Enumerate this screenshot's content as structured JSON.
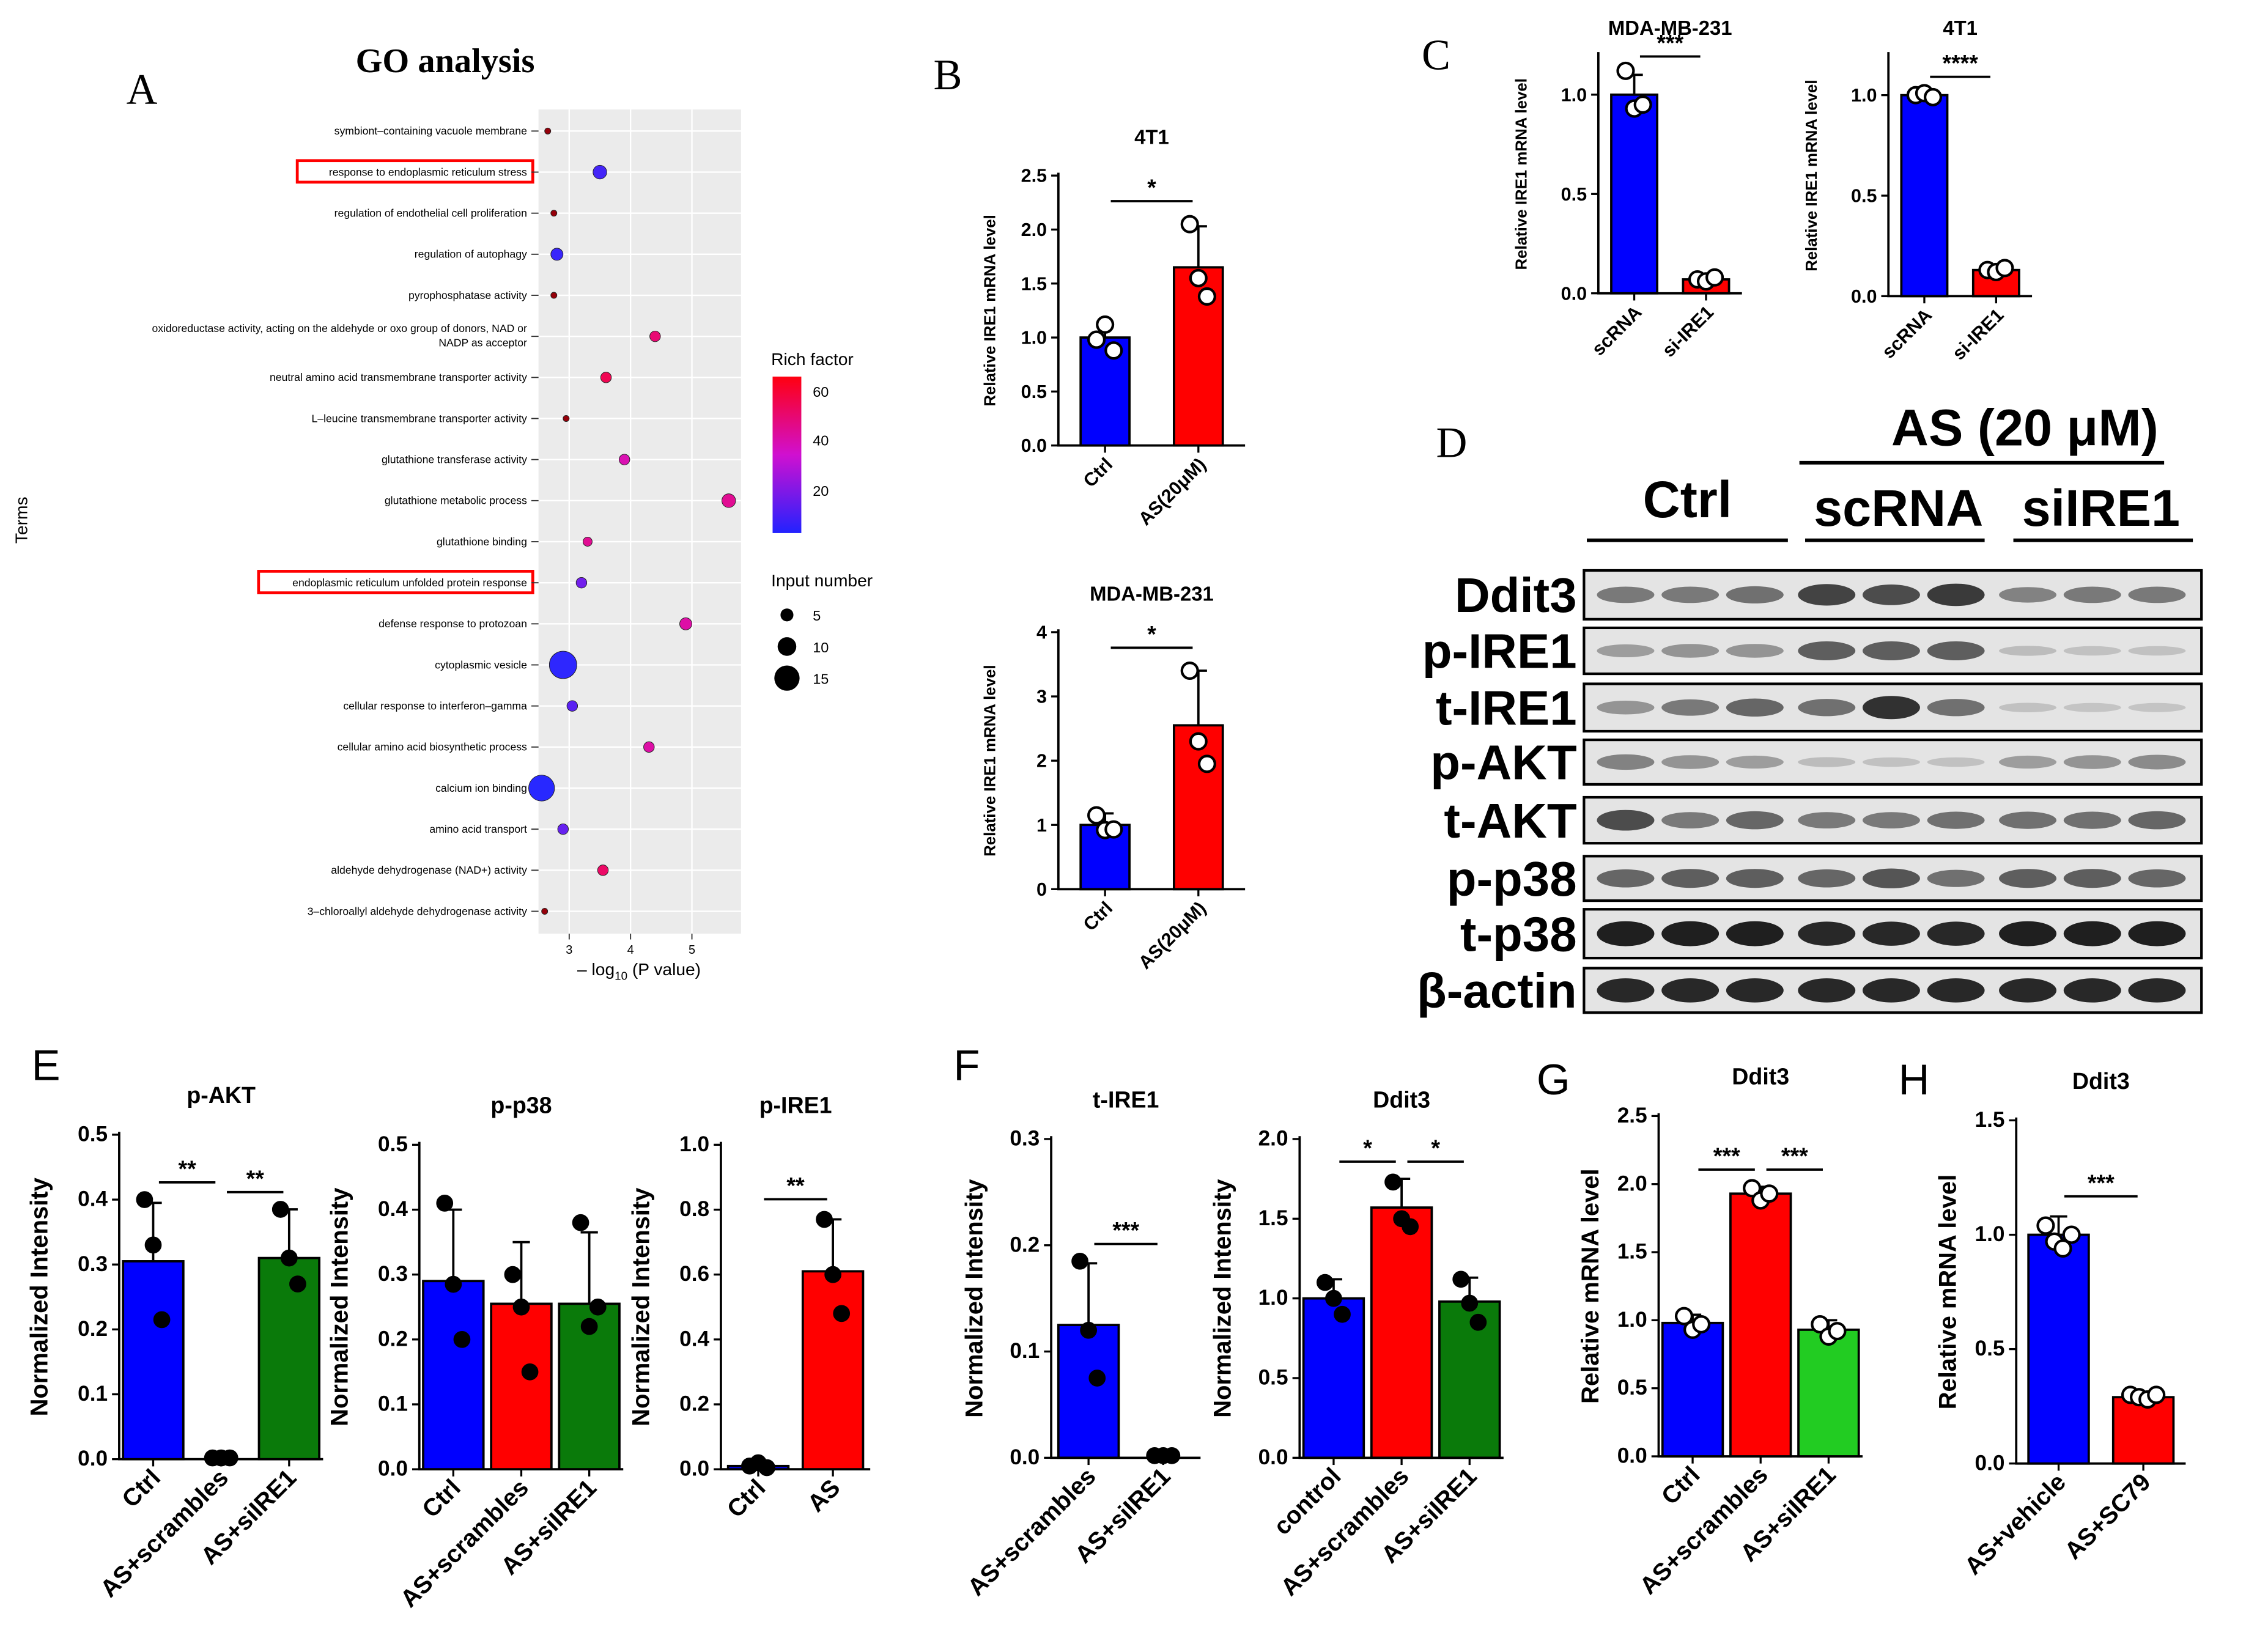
{
  "panels": {
    "A": "A",
    "B": "B",
    "C": "C",
    "D": "D",
    "E": "E",
    "F": "F",
    "G": "G",
    "H": "H"
  },
  "colors": {
    "blue": "#0000ff",
    "red": "#ff0000",
    "green": "#0a7a0a",
    "lightgreen": "#22cc22",
    "highlight": "#ff0000",
    "gobg": "#ebebeb"
  },
  "panel_a": {
    "title": "GO analysis",
    "y_axis_label": "Terms",
    "x_axis_label_pre": "– log",
    "x_axis_label_sub": "10",
    "x_axis_label_post": " (P value)",
    "x_ticks": [
      "3",
      "4",
      "5"
    ],
    "legend_rich_title": "Rich factor",
    "legend_rich_ticks": [
      "60",
      "40",
      "20"
    ],
    "legend_input_title": "Input number",
    "legend_input_ticks": [
      "5",
      "10",
      "15"
    ]
  },
  "panel_d": {
    "group_title": "AS (20 μM)",
    "groups": [
      "Ctrl",
      "scRNA",
      "siIRE1"
    ],
    "bands": [
      "Ddit3",
      "p-IRE1",
      "t-IRE1",
      "p-AKT",
      "t-AKT",
      "p-p38",
      "t-p38",
      "β-actin"
    ]
  },
  "chart_data": [
    {
      "id": "A",
      "type": "scatter",
      "title": "GO analysis",
      "xlabel": "– log10 (P value)",
      "ylabel": "Terms",
      "xlim": [
        2.5,
        5.8
      ],
      "terms": [
        {
          "label": "symbiont–containing vacuole membrane",
          "x": 2.65,
          "rich": 60,
          "n": 1,
          "highlight": false
        },
        {
          "label": "response to endoplasmic reticulum stress",
          "x": 3.5,
          "rich": 10,
          "n": 6,
          "highlight": true
        },
        {
          "label": "regulation of endothelial cell proliferation",
          "x": 2.75,
          "rich": 60,
          "n": 1,
          "highlight": false
        },
        {
          "label": "regulation of autophagy",
          "x": 2.8,
          "rich": 8,
          "n": 5,
          "highlight": false
        },
        {
          "label": "pyrophosphatase activity",
          "x": 2.75,
          "rich": 60,
          "n": 1,
          "highlight": false
        },
        {
          "label": "oxidoreductase activity, acting on the aldehyde or oxo group of donors, NAD or NADP as acceptor",
          "x": 4.4,
          "rich": 50,
          "n": 4,
          "highlight": false
        },
        {
          "label": "neutral amino acid transmembrane transporter activity",
          "x": 3.6,
          "rich": 55,
          "n": 4,
          "highlight": false
        },
        {
          "label": "L–leucine transmembrane transporter activity",
          "x": 2.95,
          "rich": 65,
          "n": 1,
          "highlight": false
        },
        {
          "label": "glutathione transferase activity",
          "x": 3.9,
          "rich": 40,
          "n": 4,
          "highlight": false
        },
        {
          "label": "glutathione metabolic process",
          "x": 5.6,
          "rich": 45,
          "n": 6,
          "highlight": false
        },
        {
          "label": "glutathione binding",
          "x": 3.3,
          "rich": 45,
          "n": 3,
          "highlight": false
        },
        {
          "label": "endoplasmic reticulum unfolded protein response",
          "x": 3.2,
          "rich": 18,
          "n": 4,
          "highlight": true
        },
        {
          "label": "defense response to protozoan",
          "x": 4.9,
          "rich": 42,
          "n": 5,
          "highlight": false
        },
        {
          "label": "cytoplasmic vesicle",
          "x": 2.9,
          "rich": 6,
          "n": 15,
          "highlight": false
        },
        {
          "label": "cellular response to interferon–gamma",
          "x": 3.05,
          "rich": 14,
          "n": 4,
          "highlight": false
        },
        {
          "label": "cellular amino acid biosynthetic process",
          "x": 4.3,
          "rich": 42,
          "n": 4,
          "highlight": false
        },
        {
          "label": "calcium ion binding",
          "x": 2.55,
          "rich": 5,
          "n": 14,
          "highlight": false
        },
        {
          "label": "amino acid transport",
          "x": 2.9,
          "rich": 16,
          "n": 4,
          "highlight": false
        },
        {
          "label": "aldehyde dehydrogenase (NAD+) activity",
          "x": 3.55,
          "rich": 52,
          "n": 4,
          "highlight": false
        },
        {
          "label": "3–chloroallyl aldehyde dehydrogenase activity",
          "x": 2.6,
          "rich": 62,
          "n": 1,
          "highlight": false
        }
      ]
    },
    {
      "id": "B1",
      "type": "bar",
      "title": "4T1",
      "ylabel": "Relative IRE1 mRNA level",
      "ylim": [
        0,
        2.5
      ],
      "yticks": [
        "0.0",
        "0.5",
        "1.0",
        "1.5",
        "2.0",
        "2.5"
      ],
      "categories": [
        "Ctrl",
        "AS(20μM)"
      ],
      "values": [
        1.0,
        1.65
      ],
      "errors": [
        0.12,
        0.38
      ],
      "points": [
        [
          0.98,
          1.12,
          0.88
        ],
        [
          2.05,
          1.55,
          1.38
        ]
      ],
      "colors": [
        "blue",
        "red"
      ],
      "sig": [
        {
          "from": 0,
          "to": 1,
          "label": "*"
        }
      ]
    },
    {
      "id": "B2",
      "type": "bar",
      "title": "MDA-MB-231",
      "ylabel": "Relative IRE1 mRNA level",
      "ylim": [
        0,
        4
      ],
      "yticks": [
        "0",
        "1",
        "2",
        "3",
        "4"
      ],
      "categories": [
        "Ctrl",
        "AS(20μM)"
      ],
      "values": [
        1.0,
        2.55
      ],
      "errors": [
        0.18,
        0.85
      ],
      "points": [
        [
          1.15,
          0.92,
          0.93
        ],
        [
          3.4,
          2.3,
          1.95
        ]
      ],
      "colors": [
        "blue",
        "red"
      ],
      "sig": [
        {
          "from": 0,
          "to": 1,
          "label": "*"
        }
      ]
    },
    {
      "id": "C1",
      "type": "bar",
      "title": "MDA-MB-231",
      "ylabel": "Relative IRE1 mRNA level",
      "ylim": [
        0,
        1.2
      ],
      "yticks": [
        "0.0",
        "0.5",
        "1.0"
      ],
      "categories": [
        "scRNA",
        "si-IRE1"
      ],
      "values": [
        1.0,
        0.07
      ],
      "errors": [
        0.1,
        0.015
      ],
      "points": [
        [
          1.12,
          0.93,
          0.95
        ],
        [
          0.07,
          0.06,
          0.08
        ]
      ],
      "colors": [
        "blue",
        "red"
      ],
      "sig": [
        {
          "from": 0,
          "to": 1,
          "label": "***"
        }
      ]
    },
    {
      "id": "C2",
      "type": "bar",
      "title": "4T1",
      "ylabel": "Relative IRE1 mRNA level",
      "ylim": [
        0,
        1.2
      ],
      "yticks": [
        "0.0",
        "0.5",
        "1.0"
      ],
      "categories": [
        "scRNA",
        "si-IRE1"
      ],
      "values": [
        1.0,
        0.13
      ],
      "errors": [
        0.02,
        0.015
      ],
      "points": [
        [
          1.0,
          1.01,
          0.99
        ],
        [
          0.13,
          0.12,
          0.14
        ]
      ],
      "colors": [
        "blue",
        "red"
      ],
      "sig": [
        {
          "from": 0,
          "to": 1,
          "label": "****"
        }
      ]
    },
    {
      "id": "E1",
      "type": "bar",
      "title": "p-AKT",
      "ylabel": "Normalized Intensity",
      "ylim": [
        0,
        0.5
      ],
      "yticks": [
        "0.0",
        "0.1",
        "0.2",
        "0.3",
        "0.4",
        "0.5"
      ],
      "categories": [
        "Ctrl",
        "AS+scrambles",
        "AS+siIRE1"
      ],
      "values": [
        0.305,
        0.0,
        0.31
      ],
      "errors": [
        0.09,
        0.0,
        0.075
      ],
      "points": [
        [
          0.4,
          0.33,
          0.215
        ],
        [
          0.002,
          0.002,
          0.002
        ],
        [
          0.385,
          0.31,
          0.27
        ]
      ],
      "colors": [
        "blue",
        "red",
        "green"
      ],
      "sig": [
        {
          "from": 0,
          "to": 1,
          "label": "**"
        },
        {
          "from": 1,
          "to": 2,
          "label": "**"
        }
      ]
    },
    {
      "id": "E2",
      "type": "bar",
      "title": "p-p38",
      "ylabel": "Normalized Intensity",
      "ylim": [
        0,
        0.5
      ],
      "yticks": [
        "0.0",
        "0.1",
        "0.2",
        "0.3",
        "0.4",
        "0.5"
      ],
      "categories": [
        "Ctrl",
        "AS+scrambles",
        "AS+siIRE1"
      ],
      "values": [
        0.29,
        0.255,
        0.255
      ],
      "errors": [
        0.11,
        0.095,
        0.11
      ],
      "points": [
        [
          0.41,
          0.285,
          0.2
        ],
        [
          0.3,
          0.25,
          0.15
        ],
        [
          0.38,
          0.22,
          0.25
        ]
      ],
      "colors": [
        "blue",
        "red",
        "green"
      ],
      "sig": []
    },
    {
      "id": "E3",
      "type": "bar",
      "title": "p-IRE1",
      "ylabel": "Normalized Intensity",
      "ylim": [
        0,
        1.0
      ],
      "yticks": [
        "0.0",
        "0.2",
        "0.4",
        "0.6",
        "0.8",
        "1.0"
      ],
      "categories": [
        "Ctrl",
        "AS"
      ],
      "values": [
        0.01,
        0.61
      ],
      "errors": [
        0.005,
        0.16
      ],
      "points": [
        [
          0.01,
          0.02,
          0.005
        ],
        [
          0.77,
          0.6,
          0.48
        ]
      ],
      "colors": [
        "blue",
        "red"
      ],
      "sig": [
        {
          "from": 0,
          "to": 1,
          "label": "**"
        }
      ]
    },
    {
      "id": "F1",
      "type": "bar",
      "title": "t-IRE1",
      "ylabel": "Normalized Intensity",
      "ylim": [
        0,
        0.3
      ],
      "yticks": [
        "0.0",
        "0.1",
        "0.2",
        "0.3"
      ],
      "categories": [
        "AS+scrambles",
        "AS+siIRE1"
      ],
      "values": [
        0.125,
        0.0
      ],
      "errors": [
        0.058,
        0.0
      ],
      "points": [
        [
          0.185,
          0.12,
          0.075
        ],
        [
          0.002,
          0.002,
          0.002
        ]
      ],
      "colors": [
        "blue",
        "red"
      ],
      "sig": [
        {
          "from": 0,
          "to": 1,
          "label": "***"
        }
      ]
    },
    {
      "id": "F2",
      "type": "bar",
      "title": "Ddit3",
      "ylabel": "Normalized Intensity",
      "ylim": [
        0,
        2.0
      ],
      "yticks": [
        "0.0",
        "0.5",
        "1.0",
        "1.5",
        "2.0"
      ],
      "categories": [
        "control",
        "AS+scrambles",
        "AS+siIRE1"
      ],
      "values": [
        1.0,
        1.57,
        0.98
      ],
      "errors": [
        0.12,
        0.18,
        0.15
      ],
      "points": [
        [
          1.1,
          1.0,
          0.9
        ],
        [
          1.73,
          1.5,
          1.45
        ],
        [
          1.12,
          0.97,
          0.85
        ]
      ],
      "colors": [
        "blue",
        "red",
        "green"
      ],
      "sig": [
        {
          "from": 0,
          "to": 1,
          "label": "*"
        },
        {
          "from": 1,
          "to": 2,
          "label": "*"
        }
      ]
    },
    {
      "id": "G",
      "type": "bar",
      "title": "Ddit3",
      "ylabel": "Relative mRNA level",
      "ylim": [
        0,
        2.5
      ],
      "yticks": [
        "0.0",
        "0.5",
        "1.0",
        "1.5",
        "2.0",
        "2.5"
      ],
      "categories": [
        "Ctrl",
        "AS+scrambles",
        "AS+siIRE1"
      ],
      "values": [
        0.98,
        1.93,
        0.93
      ],
      "errors": [
        0.06,
        0.05,
        0.07
      ],
      "points": [
        [
          1.03,
          0.93,
          0.97
        ],
        [
          1.97,
          1.88,
          1.93
        ],
        [
          0.97,
          0.88,
          0.92
        ]
      ],
      "colors": [
        "blue",
        "red",
        "lightgreen"
      ],
      "sig": [
        {
          "from": 0,
          "to": 1,
          "label": "***"
        },
        {
          "from": 1,
          "to": 2,
          "label": "***"
        }
      ]
    },
    {
      "id": "H",
      "type": "bar",
      "title": "Ddit3",
      "ylabel": "Relative mRNA level",
      "ylim": [
        0,
        1.5
      ],
      "yticks": [
        "0.0",
        "0.5",
        "1.0",
        "1.5"
      ],
      "categories": [
        "AS+vehicle",
        "AS+SC79"
      ],
      "values": [
        1.0,
        0.29
      ],
      "errors": [
        0.08,
        0.02
      ],
      "points": [
        [
          1.04,
          0.97,
          0.94,
          1.0
        ],
        [
          0.3,
          0.29,
          0.28,
          0.3
        ]
      ],
      "colors": [
        "blue",
        "red"
      ],
      "sig": [
        {
          "from": 0,
          "to": 1,
          "label": "***"
        }
      ]
    }
  ]
}
